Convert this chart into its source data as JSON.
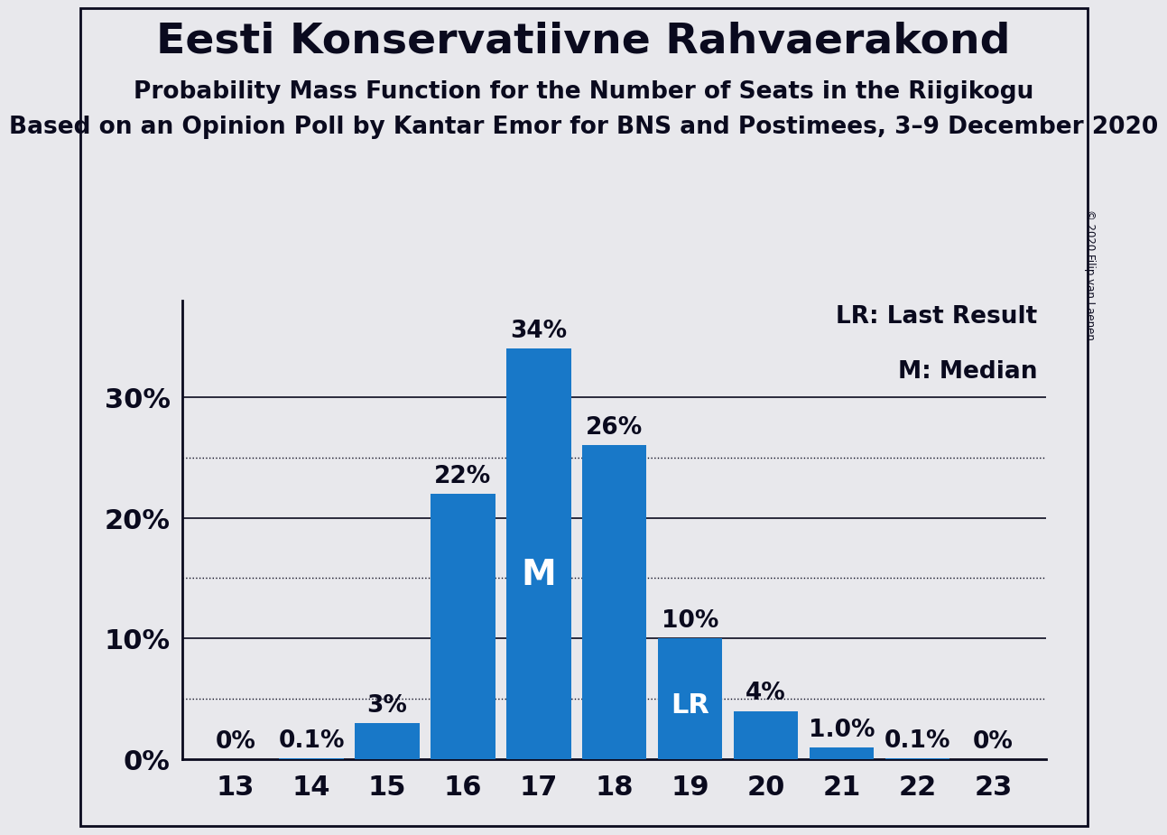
{
  "title": "Eesti Konservatiivne Rahvaerakond",
  "subtitle": "Probability Mass Function for the Number of Seats in the Riigikogu",
  "sub_subtitle": "Based on an Opinion Poll by Kantar Emor for BNS and Postimees, 3–9 December 2020",
  "copyright": "© 2020 Filip van Laenen",
  "categories": [
    13,
    14,
    15,
    16,
    17,
    18,
    19,
    20,
    21,
    22,
    23
  ],
  "values": [
    0.0,
    0.1,
    3.0,
    22.0,
    34.0,
    26.0,
    10.0,
    4.0,
    1.0,
    0.1,
    0.0
  ],
  "bar_labels": [
    "0%",
    "0.1%",
    "3%",
    "22%",
    "34%",
    "26%",
    "10%",
    "4%",
    "1.0%",
    "0.1%",
    "0%"
  ],
  "median_bar": 17,
  "lr_bar": 19,
  "bar_color": "#1878C8",
  "background_color": "#E8E8EC",
  "text_color": "#0A0A1E",
  "ylabel_ticks": [
    0,
    10,
    20,
    30
  ],
  "dotted_lines": [
    5,
    15,
    25
  ],
  "ylim": [
    0,
    38
  ],
  "legend_lr": "LR: Last Result",
  "legend_m": "M: Median",
  "title_fontsize": 34,
  "subtitle_fontsize": 19,
  "sub_subtitle_fontsize": 19,
  "bar_label_fontsize": 19,
  "axis_label_fontsize": 22,
  "inside_label_fontsize": 22,
  "legend_fontsize": 19
}
